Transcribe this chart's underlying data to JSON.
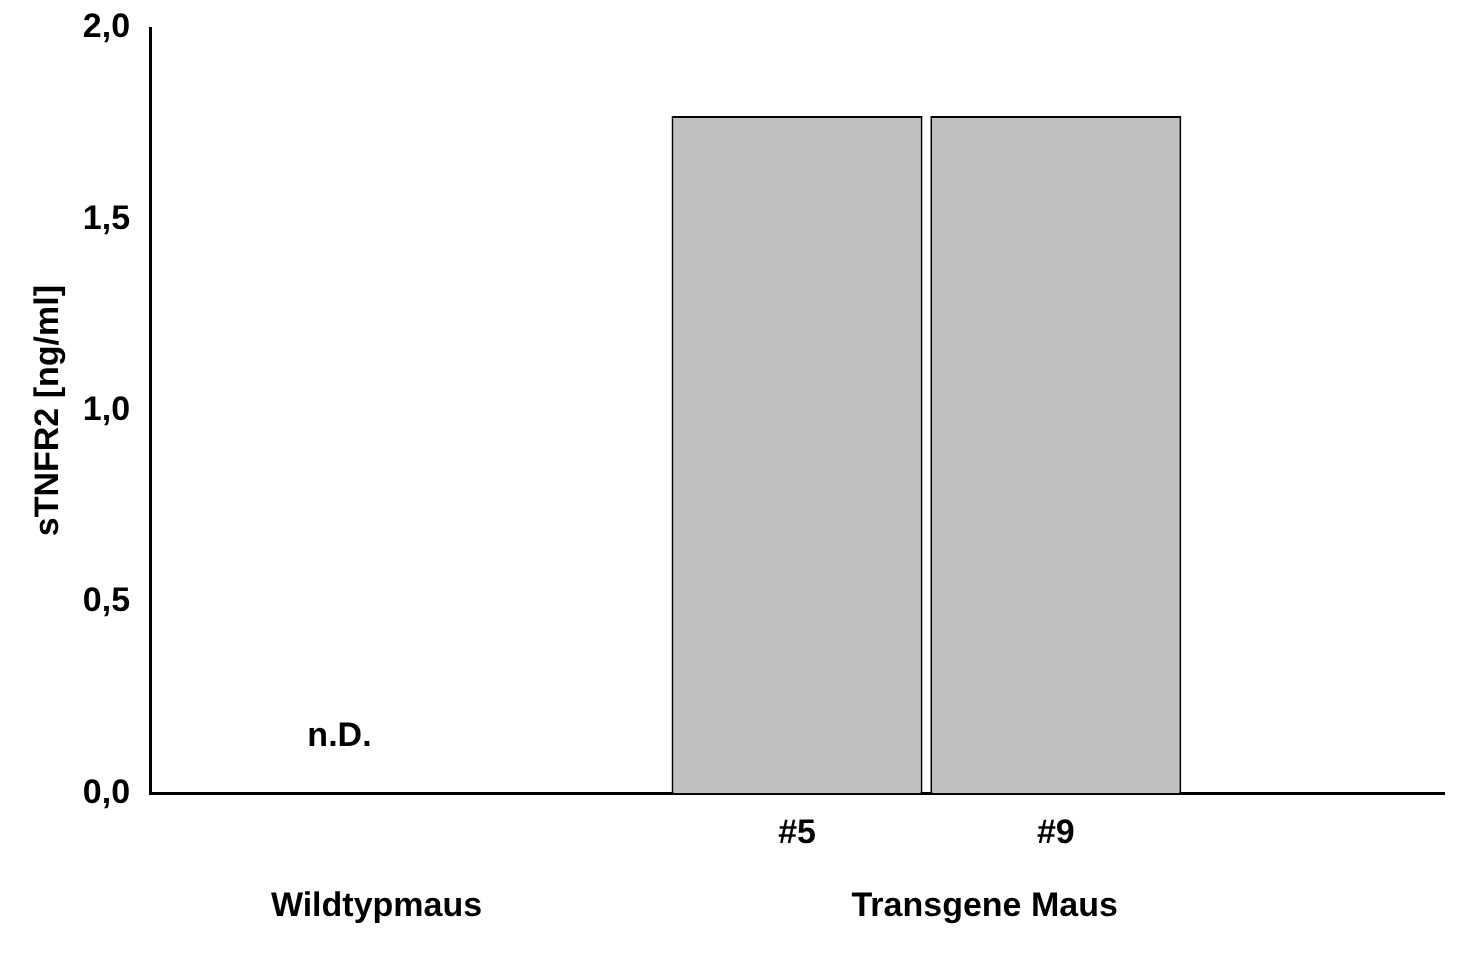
{
  "chart_data": {
    "type": "bar",
    "ylabel": "sTNFR2 [ng/ml]",
    "categories": [
      null,
      null,
      "#5",
      "#9",
      null
    ],
    "values": [
      null,
      null,
      1.77,
      1.77,
      null
    ],
    "value_labels": [
      "n.D.",
      null,
      null,
      null,
      null
    ],
    "color": "#c0c0c0",
    "ylim": [
      0,
      2
    ],
    "yticks": [
      {
        "value": 0,
        "label": "0,0"
      },
      {
        "value": 0.5,
        "label": "0,5"
      },
      {
        "value": 1,
        "label": "1,0"
      },
      {
        "value": 1.5,
        "label": "1,5"
      },
      {
        "value": 2,
        "label": "2,0"
      }
    ],
    "grid": false,
    "annotations": [
      "Wildtypmaus",
      "Transgene Maus"
    ]
  }
}
